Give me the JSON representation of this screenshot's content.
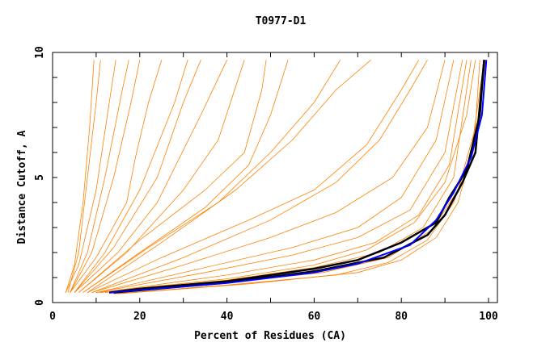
{
  "chart_data": {
    "type": "line",
    "title": "T0977-D1",
    "xlabel": "Percent of Residues (CA)",
    "ylabel": "Distance Cutoff, A",
    "xlim": [
      0,
      100
    ],
    "ylim": [
      0,
      10
    ],
    "xticks": [
      "0",
      "20",
      "40",
      "60",
      "80",
      "100"
    ],
    "yticks": [
      "0",
      "5",
      "10"
    ],
    "grid": false,
    "colors": {
      "models": "#ff8000",
      "highlight_black": "#000000",
      "highlight_blue": "#0000ff"
    },
    "series": [
      {
        "color": "#ff8000",
        "points": [
          [
            3,
            0.4
          ],
          [
            5,
            1.5
          ],
          [
            7,
            4
          ],
          [
            8.5,
            7
          ],
          [
            9.5,
            9.7
          ]
        ]
      },
      {
        "color": "#ff8000",
        "points": [
          [
            3.5,
            0.4
          ],
          [
            6,
            2
          ],
          [
            8,
            5
          ],
          [
            10,
            8
          ],
          [
            11,
            9.7
          ]
        ]
      },
      {
        "color": "#ff8000",
        "points": [
          [
            3,
            0.4
          ],
          [
            6,
            1.5
          ],
          [
            10,
            4.5
          ],
          [
            13,
            8
          ],
          [
            14.5,
            9.7
          ]
        ]
      },
      {
        "color": "#ff8000",
        "points": [
          [
            4,
            0.4
          ],
          [
            8,
            2
          ],
          [
            12,
            5
          ],
          [
            16,
            8.5
          ],
          [
            17.5,
            9.7
          ]
        ]
      },
      {
        "color": "#ff8000",
        "points": [
          [
            4,
            0.4
          ],
          [
            9,
            2
          ],
          [
            14,
            5
          ],
          [
            18,
            8
          ],
          [
            20,
            9.7
          ]
        ]
      },
      {
        "color": "#ff8000",
        "points": [
          [
            4,
            0.4
          ],
          [
            10,
            1.8
          ],
          [
            17,
            4
          ],
          [
            19,
            5.8
          ],
          [
            22,
            8
          ],
          [
            25,
            9.7
          ]
        ]
      },
      {
        "color": "#ff8000",
        "points": [
          [
            5,
            0.4
          ],
          [
            12,
            2
          ],
          [
            20,
            4.5
          ],
          [
            28,
            8
          ],
          [
            31,
            9.7
          ]
        ]
      },
      {
        "color": "#ff8000",
        "points": [
          [
            5,
            0.4
          ],
          [
            14,
            2.2
          ],
          [
            24,
            5
          ],
          [
            30,
            8
          ],
          [
            34,
            9.7
          ]
        ]
      },
      {
        "color": "#ff8000",
        "points": [
          [
            5,
            0.4
          ],
          [
            15,
            2
          ],
          [
            24,
            4
          ],
          [
            34,
            7.5
          ],
          [
            40,
            9.7
          ]
        ]
      },
      {
        "color": "#ff8000",
        "points": [
          [
            6,
            0.4
          ],
          [
            17,
            2
          ],
          [
            30,
            4.5
          ],
          [
            38,
            6.5
          ],
          [
            44,
            9.7
          ]
        ]
      },
      {
        "color": "#ff8000",
        "points": [
          [
            6,
            0.4
          ],
          [
            20,
            2.5
          ],
          [
            35,
            4.5
          ],
          [
            44,
            6
          ],
          [
            48,
            8.5
          ],
          [
            49,
            9.7
          ]
        ]
      },
      {
        "color": "#ff8000",
        "points": [
          [
            7,
            0.4
          ],
          [
            20,
            2
          ],
          [
            35,
            3.8
          ],
          [
            45,
            5.5
          ],
          [
            50,
            7.5
          ],
          [
            54,
            9.7
          ]
        ]
      },
      {
        "color": "#ff8000",
        "points": [
          [
            7,
            0.4
          ],
          [
            22,
            2.2
          ],
          [
            38,
            4
          ],
          [
            50,
            6
          ],
          [
            60,
            8
          ],
          [
            66,
            9.7
          ]
        ]
      },
      {
        "color": "#ff8000",
        "points": [
          [
            8,
            0.4
          ],
          [
            25,
            2.4
          ],
          [
            42,
            4.5
          ],
          [
            55,
            6.5
          ],
          [
            65,
            8.5
          ],
          [
            73,
            9.7
          ]
        ]
      },
      {
        "color": "#ff8000",
        "points": [
          [
            8,
            0.4
          ],
          [
            25,
            1.8
          ],
          [
            45,
            3.3
          ],
          [
            60,
            4.5
          ],
          [
            72,
            6.3
          ],
          [
            80,
            8.5
          ],
          [
            84,
            9.7
          ]
        ]
      },
      {
        "color": "#ff8000",
        "points": [
          [
            9,
            0.4
          ],
          [
            30,
            1.8
          ],
          [
            50,
            3.3
          ],
          [
            65,
            4.8
          ],
          [
            75,
            6.5
          ],
          [
            82,
            8.5
          ],
          [
            86,
            9.7
          ]
        ]
      },
      {
        "color": "#ff8000",
        "points": [
          [
            9,
            0.4
          ],
          [
            30,
            1.5
          ],
          [
            50,
            2.6
          ],
          [
            65,
            3.6
          ],
          [
            78,
            5
          ],
          [
            86,
            7
          ],
          [
            90,
            9.7
          ]
        ]
      },
      {
        "color": "#ff8000",
        "points": [
          [
            10,
            0.4
          ],
          [
            35,
            1.4
          ],
          [
            55,
            2.2
          ],
          [
            70,
            3
          ],
          [
            80,
            4.2
          ],
          [
            88,
            6.5
          ],
          [
            92,
            9.7
          ]
        ]
      },
      {
        "color": "#ff8000",
        "points": [
          [
            10,
            0.4
          ],
          [
            35,
            1.2
          ],
          [
            55,
            1.9
          ],
          [
            70,
            2.6
          ],
          [
            82,
            3.7
          ],
          [
            90,
            6
          ],
          [
            94,
            9.7
          ]
        ]
      },
      {
        "color": "#ff8000",
        "points": [
          [
            11,
            0.4
          ],
          [
            40,
            1.1
          ],
          [
            60,
            1.7
          ],
          [
            74,
            2.4
          ],
          [
            84,
            3.5
          ],
          [
            91,
            5.5
          ],
          [
            95,
            9.7
          ]
        ]
      },
      {
        "color": "#ff8000",
        "points": [
          [
            12,
            0.4
          ],
          [
            40,
            0.9
          ],
          [
            60,
            1.4
          ],
          [
            75,
            2
          ],
          [
            85,
            3
          ],
          [
            92,
            5
          ],
          [
            96,
            9.7
          ]
        ]
      },
      {
        "color": "#ff8000",
        "points": [
          [
            13,
            0.4
          ],
          [
            40,
            0.8
          ],
          [
            62,
            1.2
          ],
          [
            77,
            1.8
          ],
          [
            87,
            2.9
          ],
          [
            93,
            4.5
          ],
          [
            97,
            7
          ],
          [
            98,
            9.7
          ]
        ]
      },
      {
        "color": "#ff8000",
        "points": [
          [
            14,
            0.35
          ],
          [
            40,
            0.7
          ],
          [
            65,
            1.1
          ],
          [
            77,
            1.6
          ],
          [
            86,
            2.5
          ],
          [
            92,
            4
          ],
          [
            96,
            6
          ],
          [
            99,
            9.7
          ]
        ]
      },
      {
        "color": "#ff8000",
        "points": [
          [
            15,
            0.35
          ],
          [
            45,
            0.75
          ],
          [
            70,
            1.2
          ],
          [
            80,
            1.7
          ],
          [
            88,
            2.6
          ],
          [
            93,
            4
          ],
          [
            97,
            6.5
          ],
          [
            99.3,
            9.7
          ]
        ]
      },
      {
        "color": "#ff8000",
        "points": [
          [
            10,
            0.4
          ],
          [
            40,
            0.95
          ],
          [
            60,
            1.5
          ],
          [
            72,
            2.1
          ],
          [
            83,
            3.2
          ],
          [
            90,
            4.8
          ],
          [
            95,
            7.5
          ],
          [
            97,
            9.7
          ]
        ]
      },
      {
        "color": "#000000",
        "points": [
          [
            13,
            0.4
          ],
          [
            20,
            0.55
          ],
          [
            40,
            0.85
          ],
          [
            60,
            1.35
          ],
          [
            70,
            1.7
          ],
          [
            80,
            2.4
          ],
          [
            88,
            3.2
          ],
          [
            91,
            4.2
          ],
          [
            95,
            5.3
          ],
          [
            98,
            7.5
          ],
          [
            99,
            9.7
          ]
        ]
      },
      {
        "color": "#000000",
        "points": [
          [
            14,
            0.4
          ],
          [
            40,
            0.8
          ],
          [
            60,
            1.25
          ],
          [
            76,
            1.8
          ],
          [
            86,
            2.7
          ],
          [
            90,
            3.5
          ],
          [
            94,
            4.8
          ],
          [
            97,
            6
          ],
          [
            99,
            9.7
          ]
        ]
      },
      {
        "color": "#0000ff",
        "points": [
          [
            13,
            0.4
          ],
          [
            40,
            0.78
          ],
          [
            60,
            1.2
          ],
          [
            70,
            1.55
          ],
          [
            82,
            2.3
          ],
          [
            88,
            3.3
          ],
          [
            92,
            4.4
          ],
          [
            96,
            5.8
          ],
          [
            98.5,
            7.5
          ],
          [
            99.5,
            9.7
          ]
        ]
      }
    ]
  }
}
